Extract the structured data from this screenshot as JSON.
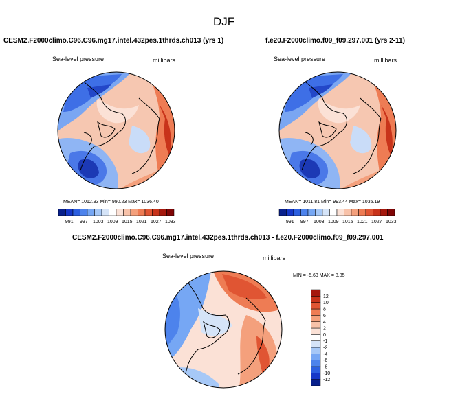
{
  "main_title": "DJF",
  "panels": [
    {
      "title": "CESM2.F2000climo.C96.C96.mg17.intel.432pes.1thrds.ch013 (yrs 1)",
      "left_label": "Sea-level pressure",
      "right_label": "millibars",
      "stats": "MEAN= 1012.93  Min= 990.23  Max= 1036.40"
    },
    {
      "title": "f.e20.F2000climo.f09_f09.297.001 (yrs 2-11)",
      "left_label": "Sea-level pressure",
      "right_label": "millibars",
      "stats": "MEAN= 1011.81  Min= 993.44  Max= 1035.19"
    }
  ],
  "diff": {
    "title": "CESM2.F2000climo.C96.C96.mg17.intel.432pes.1thrds.ch013 - f.e20.F2000climo.f09_f09.297.001",
    "left_label": "Sea-level pressure",
    "right_label": "millibars",
    "minmax": "MIN =  -5.63 MAX =   8.85"
  },
  "colorbar_abs": {
    "labels": [
      "991",
      "997",
      "1003",
      "1009",
      "1015",
      "1021",
      "1027",
      "1033"
    ],
    "colors": [
      "#08208c",
      "#1537c8",
      "#2c5fe0",
      "#4d83ec",
      "#76a7f4",
      "#a6c8f7",
      "#d5e4f8",
      "#ffffff",
      "#fbe1d6",
      "#f8c2a9",
      "#f4a07c",
      "#ee7c54",
      "#e05533",
      "#c8331a",
      "#a5180d",
      "#800505"
    ]
  },
  "colorbar_diff": {
    "labels": [
      "12",
      "10",
      "8",
      "6",
      "4",
      "2",
      "0",
      "-1",
      "-2",
      "-4",
      "-6",
      "-8",
      "-10",
      "-12"
    ],
    "colors": [
      "#08208c",
      "#1537c8",
      "#2c5fe0",
      "#4d83ec",
      "#76a7f4",
      "#a6c8f7",
      "#d5e4f8",
      "#ffffff",
      "#fbe1d6",
      "#f8c2a9",
      "#f4a07c",
      "#ee7c54",
      "#e05533",
      "#c8331a",
      "#a5180d"
    ]
  }
}
